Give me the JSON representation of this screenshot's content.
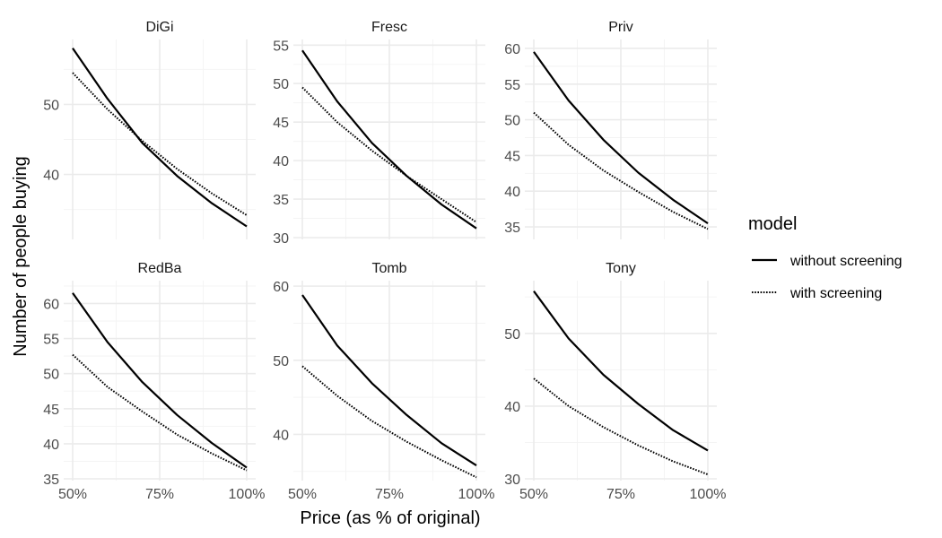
{
  "chart_data": {
    "type": "line",
    "xlabel": "Price (as % of original)",
    "ylabel": "Number of people buying",
    "x": [
      50,
      60,
      70,
      80,
      90,
      100
    ],
    "x_ticks": [
      {
        "value": 50,
        "label": "50%"
      },
      {
        "value": 75,
        "label": "75%"
      },
      {
        "value": 100,
        "label": "100%"
      }
    ],
    "xlim": [
      50,
      100
    ],
    "grid": true,
    "legend": {
      "title": "model",
      "position": "right",
      "entries": [
        {
          "label": "without screening",
          "linetype": "solid"
        },
        {
          "label": "with screening",
          "linetype": "dotted"
        }
      ]
    },
    "panels": [
      {
        "title": "DiGi",
        "ylim": [
          31,
          59
        ],
        "y_ticks": [
          {
            "value": 40,
            "label": "40"
          },
          {
            "value": 50,
            "label": "50"
          }
        ],
        "series": [
          {
            "name": "without screening",
            "values": [
              58.0,
              50.8,
              44.5,
              39.8,
              35.9,
              32.6
            ]
          },
          {
            "name": "with screening",
            "values": [
              54.5,
              49.3,
              44.8,
              40.8,
              37.3,
              34.2
            ]
          }
        ]
      },
      {
        "title": "Fresc",
        "ylim": [
          30,
          55.5
        ],
        "y_ticks": [
          {
            "value": 30,
            "label": "30"
          },
          {
            "value": 35,
            "label": "35"
          },
          {
            "value": 40,
            "label": "40"
          },
          {
            "value": 45,
            "label": "45"
          },
          {
            "value": 50,
            "label": "50"
          },
          {
            "value": 55,
            "label": "55"
          }
        ],
        "series": [
          {
            "name": "without screening",
            "values": [
              54.3,
              47.7,
              42.3,
              38.0,
              34.3,
              31.2
            ]
          },
          {
            "name": "with screening",
            "values": [
              49.5,
              45.0,
              41.3,
              38.0,
              35.0,
              32.0
            ]
          }
        ]
      },
      {
        "title": "Priv",
        "ylim": [
          33.5,
          61
        ],
        "y_ticks": [
          {
            "value": 35,
            "label": "35"
          },
          {
            "value": 40,
            "label": "40"
          },
          {
            "value": 45,
            "label": "45"
          },
          {
            "value": 50,
            "label": "50"
          },
          {
            "value": 55,
            "label": "55"
          },
          {
            "value": 60,
            "label": "60"
          }
        ],
        "series": [
          {
            "name": "without screening",
            "values": [
              59.5,
              52.7,
              47.2,
              42.6,
              38.8,
              35.5
            ]
          },
          {
            "name": "with screening",
            "values": [
              51.0,
              46.5,
              42.9,
              39.9,
              37.1,
              34.7
            ]
          }
        ]
      },
      {
        "title": "RedBa",
        "ylim": [
          35,
          63
        ],
        "y_ticks": [
          {
            "value": 35,
            "label": "35"
          },
          {
            "value": 40,
            "label": "40"
          },
          {
            "value": 45,
            "label": "45"
          },
          {
            "value": 50,
            "label": "50"
          },
          {
            "value": 55,
            "label": "55"
          },
          {
            "value": 60,
            "label": "60"
          }
        ],
        "series": [
          {
            "name": "without screening",
            "values": [
              61.5,
              54.5,
              48.8,
              44.1,
              40.1,
              36.6
            ]
          },
          {
            "name": "with screening",
            "values": [
              52.7,
              48.1,
              44.6,
              41.3,
              38.6,
              36.2
            ]
          }
        ]
      },
      {
        "title": "Tomb",
        "ylim": [
          34,
          60.5
        ],
        "y_ticks": [
          {
            "value": 40,
            "label": "40"
          },
          {
            "value": 50,
            "label": "50"
          },
          {
            "value": 60,
            "label": "60"
          }
        ],
        "series": [
          {
            "name": "without screening",
            "values": [
              58.8,
              52.0,
              46.9,
              42.6,
              38.8,
              35.8
            ]
          },
          {
            "name": "with screening",
            "values": [
              49.2,
              45.2,
              41.8,
              39.0,
              36.5,
              34.2
            ]
          }
        ]
      },
      {
        "title": "Tony",
        "ylim": [
          30,
          57
        ],
        "y_ticks": [
          {
            "value": 30,
            "label": "30"
          },
          {
            "value": 40,
            "label": "40"
          },
          {
            "value": 50,
            "label": "50"
          }
        ],
        "series": [
          {
            "name": "without screening",
            "values": [
              55.8,
              49.3,
              44.3,
              40.3,
              36.7,
              33.9
            ]
          },
          {
            "name": "with screening",
            "values": [
              43.8,
              40.0,
              37.1,
              34.6,
              32.4,
              30.6
            ]
          }
        ]
      }
    ]
  }
}
